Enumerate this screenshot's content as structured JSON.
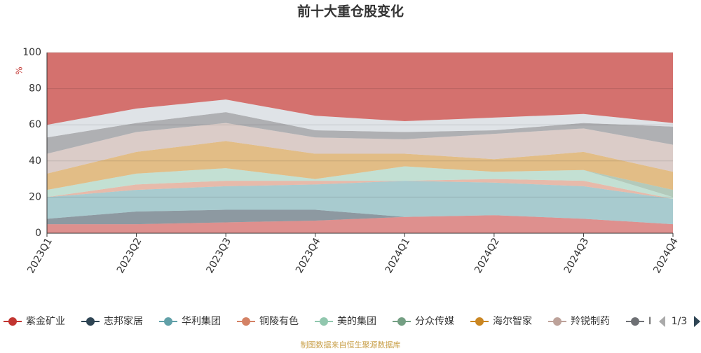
{
  "chart_data": {
    "type": "stacked-area",
    "title": "前十大重仓股变化",
    "y_label": "%",
    "categories": [
      "2023Q1",
      "2023Q2",
      "2023Q3",
      "2023Q4",
      "2024Q1",
      "2024Q2",
      "2024Q3",
      "2024Q4"
    ],
    "ylim": [
      0,
      100
    ],
    "yticks": [
      0,
      20,
      40,
      60,
      80,
      100
    ],
    "grid": true,
    "series": [
      {
        "name": "紫金矿业",
        "color": "#c23531",
        "values": [
          5,
          5,
          6,
          7,
          9,
          10,
          8,
          5
        ]
      },
      {
        "name": "志邦家居",
        "color": "#2f4554",
        "values": [
          3,
          7,
          7,
          6,
          0,
          0,
          0,
          0
        ]
      },
      {
        "name": "华利集团",
        "color": "#61a0a8",
        "values": [
          12,
          12,
          13,
          14,
          20,
          18,
          18,
          14
        ]
      },
      {
        "name": "铜陵有色",
        "color": "#d48265",
        "values": [
          0,
          3,
          3,
          2,
          0,
          2,
          3,
          0
        ]
      },
      {
        "name": "美的集团",
        "color": "#91c7ae",
        "values": [
          4,
          6,
          7,
          1,
          8,
          4,
          6,
          1
        ]
      },
      {
        "name": "分众传媒",
        "color": "#749f83",
        "values": [
          0,
          0,
          0,
          0,
          0,
          0,
          0,
          4
        ]
      },
      {
        "name": "海尔智家",
        "color": "#ca8622",
        "values": [
          9,
          12,
          15,
          14,
          7,
          7,
          10,
          10
        ]
      },
      {
        "name": "羚锐制药",
        "color": "#bda29a",
        "values": [
          11,
          11,
          10,
          9,
          8,
          14,
          13,
          15
        ]
      },
      {
        "name": "I",
        "color": "#6e7074",
        "values": [
          9,
          5,
          6,
          4,
          4,
          2,
          3,
          10
        ]
      },
      {
        "color": "#c4ccd3",
        "values": [
          7,
          8,
          7,
          8,
          6,
          7,
          5,
          2
        ]
      },
      {
        "color": "#c23531",
        "values": [
          40,
          31,
          26,
          35,
          38,
          36,
          34,
          39
        ]
      }
    ],
    "legend_page": "1/3",
    "source": "制图数据来自恒生聚源数据库"
  }
}
